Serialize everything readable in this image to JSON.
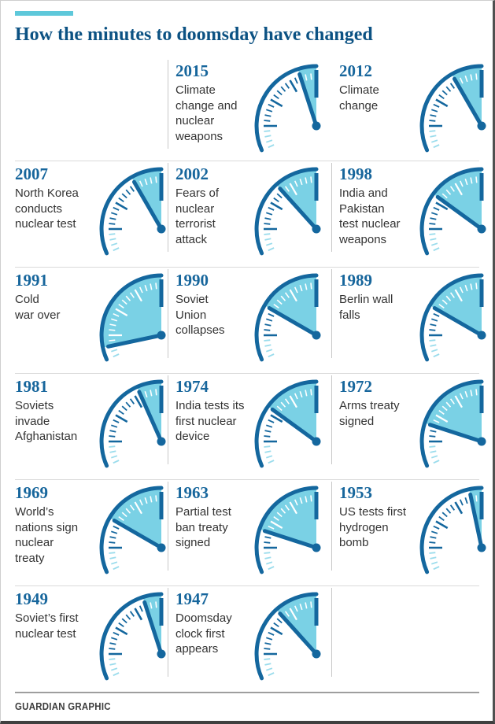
{
  "header": {
    "title": "How the minutes to doomsday have changed"
  },
  "footer": {
    "credit": "GUARDIAN GRAPHIC"
  },
  "colors": {
    "accent_teal": "#5ec8da",
    "title_blue": "#0c5283",
    "year_blue": "#17669c",
    "clock_dark": "#14679e",
    "wedge_cyan": "#7ad1e5",
    "tick_cyan": "#9adcec",
    "tick_white": "#ffffff",
    "text_dark": "#333333",
    "divider_gray": "#c8c8c8",
    "row_rule_gray": "#dadada",
    "footer_rule_gray": "#9e9e9e",
    "footer_text_gray": "#3d3d3d"
  },
  "rows": [
    [
      null,
      {
        "year": "2015",
        "lines": [
          "Climate",
          "change and",
          "nuclear",
          "weapons"
        ],
        "minutes": 3,
        "divider": true
      },
      {
        "year": "2012",
        "lines": [
          "Climate",
          "change"
        ],
        "minutes": 5,
        "divider": false
      }
    ],
    [
      {
        "year": "2007",
        "lines": [
          "North Korea",
          "conducts",
          "nuclear test"
        ],
        "minutes": 5,
        "divider": false
      },
      {
        "year": "2002",
        "lines": [
          "Fears of",
          "nuclear",
          "terrorist",
          "attack"
        ],
        "minutes": 7,
        "divider": true
      },
      {
        "year": "1998",
        "lines": [
          "India and",
          "Pakistan",
          "test nuclear",
          "weapons"
        ],
        "minutes": 9,
        "divider": true
      }
    ],
    [
      {
        "year": "1991",
        "lines": [
          "Cold",
          "war over"
        ],
        "minutes": 17,
        "divider": false
      },
      {
        "year": "1990",
        "lines": [
          "Soviet",
          "Union",
          "collapses"
        ],
        "minutes": 10,
        "divider": true
      },
      {
        "year": "1989",
        "lines": [
          "Berlin wall",
          "falls"
        ],
        "minutes": 10,
        "divider": true
      }
    ],
    [
      {
        "year": "1981",
        "lines": [
          "Soviets",
          "invade",
          "Afghanistan"
        ],
        "minutes": 4,
        "divider": false
      },
      {
        "year": "1974",
        "lines": [
          "India tests its",
          "first nuclear",
          "device"
        ],
        "minutes": 9,
        "divider": true
      },
      {
        "year": "1972",
        "lines": [
          "Arms treaty",
          "signed"
        ],
        "minutes": 12,
        "divider": true
      }
    ],
    [
      {
        "year": "1969",
        "lines": [
          "World’s",
          "nations sign",
          "nuclear",
          "treaty"
        ],
        "minutes": 10,
        "divider": false
      },
      {
        "year": "1963",
        "lines": [
          "Partial test",
          "ban treaty",
          "signed"
        ],
        "minutes": 12,
        "divider": true
      },
      {
        "year": "1953",
        "lines": [
          "US tests first",
          "hydrogen",
          "bomb"
        ],
        "minutes": 2,
        "divider": true
      }
    ],
    [
      {
        "year": "1949",
        "lines": [
          "Soviet’s first",
          "nuclear test"
        ],
        "minutes": 3,
        "divider": false
      },
      {
        "year": "1947",
        "lines": [
          "Doomsday",
          "clock first",
          "appears"
        ],
        "minutes": 7,
        "divider": true
      },
      {
        "year": null,
        "lines": [],
        "minutes": null,
        "divider": true
      }
    ]
  ],
  "chart_data": {
    "type": "gauge",
    "title": "How the minutes to doomsday have changed",
    "unit": "minutes to midnight",
    "gauge_visible_range_minutes": [
      41,
      60
    ],
    "legend_position": "none",
    "series": [
      {
        "year": 2015,
        "event": "Climate change and nuclear weapons",
        "minutes_to_midnight": 3
      },
      {
        "year": 2012,
        "event": "Climate change",
        "minutes_to_midnight": 5
      },
      {
        "year": 2007,
        "event": "North Korea conducts nuclear test",
        "minutes_to_midnight": 5
      },
      {
        "year": 2002,
        "event": "Fears of nuclear terrorist attack",
        "minutes_to_midnight": 7
      },
      {
        "year": 1998,
        "event": "India and Pakistan test nuclear weapons",
        "minutes_to_midnight": 9
      },
      {
        "year": 1991,
        "event": "Cold war over",
        "minutes_to_midnight": 17
      },
      {
        "year": 1990,
        "event": "Soviet Union collapses",
        "minutes_to_midnight": 10
      },
      {
        "year": 1989,
        "event": "Berlin wall falls",
        "minutes_to_midnight": 10
      },
      {
        "year": 1981,
        "event": "Soviets invade Afghanistan",
        "minutes_to_midnight": 4
      },
      {
        "year": 1974,
        "event": "India tests its first nuclear device",
        "minutes_to_midnight": 9
      },
      {
        "year": 1972,
        "event": "Arms treaty signed",
        "minutes_to_midnight": 12
      },
      {
        "year": 1969,
        "event": "World’s nations sign nuclear treaty",
        "minutes_to_midnight": 10
      },
      {
        "year": 1963,
        "event": "Partial test ban treaty signed",
        "minutes_to_midnight": 12
      },
      {
        "year": 1953,
        "event": "US tests first hydrogen bomb",
        "minutes_to_midnight": 2
      },
      {
        "year": 1949,
        "event": "Soviet’s first nuclear test",
        "minutes_to_midnight": 3
      },
      {
        "year": 1947,
        "event": "Doomsday clock first appears",
        "minutes_to_midnight": 7
      }
    ]
  }
}
